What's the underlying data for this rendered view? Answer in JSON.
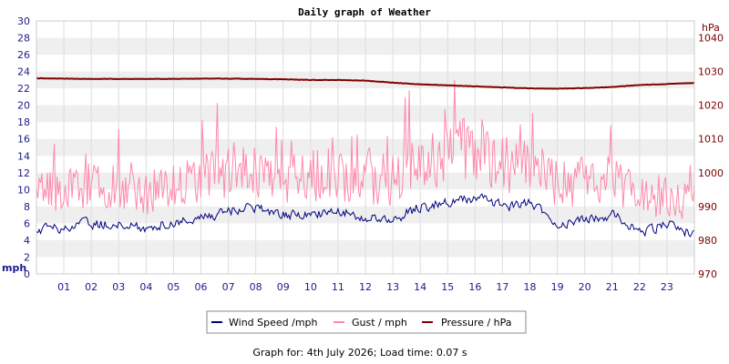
{
  "chart_data": {
    "type": "line",
    "title": "Daily graph of Weather",
    "left_axis": {
      "unit": "mph",
      "ylim": [
        0,
        30
      ],
      "ticks": [
        "0",
        "2",
        "4",
        "6",
        "8",
        "10",
        "12",
        "14",
        "16",
        "18",
        "20",
        "22",
        "24",
        "26",
        "28",
        "30"
      ],
      "color": "#1a1a8c"
    },
    "right_axis": {
      "unit": "hPa",
      "ylim": [
        970,
        1045
      ],
      "ticks": [
        "970",
        "980",
        "990",
        "1000",
        "1010",
        "1020",
        "1030",
        "1040"
      ],
      "color": "#7a0000"
    },
    "x_axis": {
      "xlim": [
        0,
        24
      ],
      "ticks": [
        "01",
        "02",
        "03",
        "04",
        "05",
        "06",
        "07",
        "08",
        "09",
        "10",
        "11",
        "12",
        "13",
        "14",
        "15",
        "16",
        "17",
        "18",
        "19",
        "20",
        "21",
        "22",
        "23"
      ]
    },
    "grid": true,
    "legend_placement": "bottom-center",
    "series": [
      {
        "name": "Wind Speed /mph",
        "color": "#000080",
        "axis": "left",
        "x": [
          0,
          1,
          2,
          3,
          4,
          5,
          6,
          7,
          8,
          9,
          10,
          11,
          12,
          13,
          14,
          15,
          16,
          17,
          18,
          19,
          20,
          21,
          22,
          23,
          24
        ],
        "values": [
          5.2,
          5.5,
          6.0,
          5.8,
          5.5,
          6.2,
          6.6,
          7.5,
          8.0,
          7.0,
          7.0,
          7.5,
          6.5,
          6.5,
          8.0,
          8.5,
          9.0,
          8.0,
          8.5,
          6.0,
          6.5,
          7.0,
          5.0,
          6.0,
          4.5
        ]
      },
      {
        "name": "Gust / mph",
        "color": "#ff88aa",
        "axis": "left",
        "x": [
          0,
          1,
          2,
          3,
          4,
          5,
          6,
          7,
          8,
          9,
          10,
          11,
          12,
          13,
          14,
          15,
          16,
          17,
          18,
          19,
          20,
          21,
          22,
          23,
          24
        ],
        "values": [
          9.5,
          10.0,
          10.5,
          10.0,
          9.5,
          10.5,
          11.0,
          12.0,
          12.0,
          11.0,
          11.5,
          12.0,
          11.0,
          11.0,
          13.5,
          14.0,
          15.0,
          13.0,
          13.0,
          10.5,
          11.0,
          11.0,
          9.0,
          9.5,
          8.5
        ]
      },
      {
        "name": "Pressure / hPa",
        "color": "#800000",
        "axis": "right",
        "x": [
          0,
          1,
          2,
          3,
          4,
          5,
          6,
          7,
          8,
          9,
          10,
          11,
          12,
          13,
          14,
          15,
          16,
          17,
          18,
          19,
          20,
          21,
          22,
          23,
          24
        ],
        "values": [
          1028,
          1027.9,
          1027.8,
          1027.8,
          1027.8,
          1027.8,
          1027.9,
          1027.9,
          1027.8,
          1027.7,
          1027.5,
          1027.5,
          1027.3,
          1026.7,
          1026.2,
          1025.9,
          1025.6,
          1025.3,
          1025.0,
          1024.9,
          1025.1,
          1025.4,
          1026.0,
          1026.3,
          1026.6
        ]
      }
    ]
  },
  "footer": {
    "text": "Graph for: 4th July 2026; Load time: 0.07 s"
  }
}
